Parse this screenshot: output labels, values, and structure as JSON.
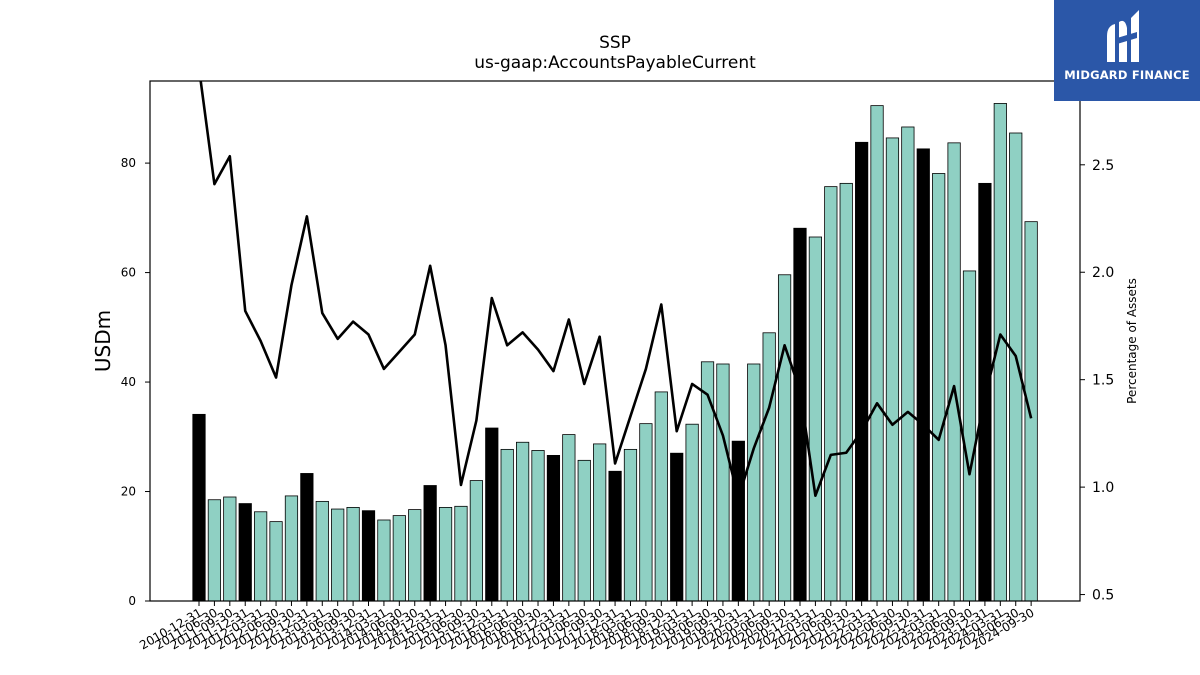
{
  "chart_data": {
    "type": "bar",
    "title": "SSP",
    "subtitle": "us-gaap:AccountsPayableCurrent",
    "ylabel": "USDm",
    "y2label": "Percentage of Assets",
    "ylim": [
      0,
      95
    ],
    "y2lim": [
      0.47,
      2.89
    ],
    "yticks": [
      0,
      20,
      40,
      60,
      80
    ],
    "y2ticks": [
      0.5,
      1.0,
      1.5,
      2.0,
      2.5
    ],
    "y2ticklabels": [
      "0.5",
      "1.0",
      "1.5",
      "2.0",
      "2.5"
    ],
    "grid": false,
    "colors": {
      "annual": "#000000",
      "quarter": "#8fd0c3",
      "line": "#000000"
    },
    "categories": [
      "2010-12-31",
      "2011-06-30",
      "2011-09-30",
      "2011-12-31",
      "2012-03-31",
      "2012-06-30",
      "2012-09-30",
      "2012-12-31",
      "2013-03-31",
      "2013-06-30",
      "2013-09-30",
      "2013-12-31",
      "2014-03-31",
      "2014-06-30",
      "2014-09-30",
      "2014-12-31",
      "2015-03-31",
      "2015-06-30",
      "2015-09-30",
      "2015-12-31",
      "2016-03-31",
      "2016-06-30",
      "2016-09-30",
      "2016-12-31",
      "2017-03-31",
      "2017-06-30",
      "2017-09-30",
      "2017-12-31",
      "2018-03-31",
      "2018-06-30",
      "2018-09-30",
      "2018-12-31",
      "2019-03-31",
      "2019-06-30",
      "2019-09-30",
      "2019-12-31",
      "2020-03-31",
      "2020-06-30",
      "2020-09-30",
      "2020-12-31",
      "2021-03-31",
      "2021-06-30",
      "2021-09-30",
      "2021-12-31",
      "2022-03-31",
      "2022-06-30",
      "2022-09-30",
      "2022-12-31",
      "2023-03-31",
      "2023-06-30",
      "2023-09-30",
      "2023-12-31",
      "2024-03-31",
      "2024-06-30",
      "2024-09-30"
    ],
    "series": [
      {
        "kind": "bar",
        "values": [
          34.1,
          18.5,
          19.0,
          17.8,
          16.3,
          14.5,
          19.2,
          23.3,
          18.2,
          16.8,
          17.1,
          16.5,
          14.8,
          15.6,
          16.7,
          21.1,
          17.1,
          17.3,
          22.0,
          31.6,
          27.7,
          29.0,
          27.5,
          26.6,
          30.4,
          25.7,
          28.7,
          23.7,
          27.7,
          32.4,
          38.2,
          27.0,
          32.3,
          43.7,
          43.3,
          29.2,
          43.3,
          49.0,
          59.6,
          68.1,
          66.5,
          75.7,
          76.3,
          83.8,
          90.5,
          84.6,
          86.6,
          82.6,
          78.1,
          83.7,
          60.3,
          76.3,
          90.9,
          85.5,
          69.3
        ],
        "annual": [
          true,
          false,
          false,
          true,
          false,
          false,
          false,
          true,
          false,
          false,
          false,
          true,
          false,
          false,
          false,
          true,
          false,
          false,
          false,
          true,
          false,
          false,
          false,
          true,
          false,
          false,
          false,
          true,
          false,
          false,
          false,
          true,
          false,
          false,
          false,
          true,
          false,
          false,
          false,
          true,
          false,
          false,
          false,
          true,
          false,
          false,
          false,
          true,
          false,
          false,
          false,
          true,
          false,
          false,
          false
        ]
      },
      {
        "kind": "line",
        "axis": "right",
        "values": [
          2.95,
          2.41,
          2.54,
          1.82,
          1.68,
          1.51,
          1.94,
          2.26,
          1.81,
          1.69,
          1.77,
          1.71,
          1.55,
          1.63,
          1.71,
          2.03,
          1.66,
          1.01,
          1.31,
          1.88,
          1.66,
          1.72,
          1.64,
          1.54,
          1.78,
          1.48,
          1.7,
          1.11,
          1.33,
          1.55,
          1.85,
          1.26,
          1.48,
          1.43,
          1.24,
          0.95,
          1.18,
          1.37,
          1.66,
          1.45,
          0.96,
          1.15,
          1.16,
          1.26,
          1.39,
          1.29,
          1.35,
          1.29,
          1.22,
          1.47,
          1.06,
          1.42,
          1.71,
          1.61,
          1.32
        ]
      }
    ]
  },
  "logo": {
    "text": "MIDGARD FINANCE"
  }
}
